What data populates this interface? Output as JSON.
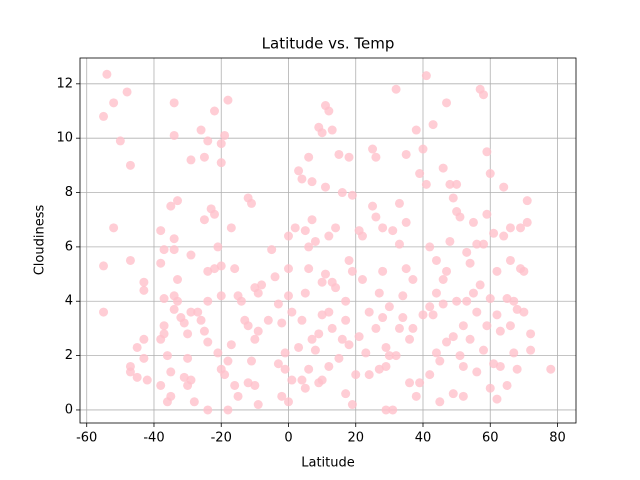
{
  "chart_data": {
    "type": "scatter",
    "title": "Latitude vs. Temp",
    "x_label": "Latitude",
    "y_label": "Cloudiness",
    "color": "#ffc0cb",
    "grid": true,
    "xlim": [
      -62,
      85.5
    ],
    "ylim": [
      -0.48,
      12.95
    ],
    "xticks": [
      -60,
      -40,
      -20,
      0,
      20,
      40,
      60,
      80
    ],
    "yticks": [
      0,
      2,
      4,
      6,
      8,
      10,
      12
    ],
    "x": [
      -54,
      -55,
      -52,
      -48,
      -50,
      -47,
      -52,
      -55,
      -55,
      -47,
      -43,
      -43,
      -45,
      -43,
      -47,
      -47,
      -45,
      -43,
      -42,
      -38,
      -38,
      -38,
      -37,
      -37,
      -37,
      -38,
      -37,
      -36,
      -35,
      -35,
      -36,
      -34,
      -34,
      -35,
      -33,
      -34,
      -34,
      -33,
      -34,
      -33,
      -32,
      -34,
      -31,
      -30,
      -30,
      -31,
      -30,
      -29,
      -28,
      -29,
      -26,
      -24,
      -25,
      -29,
      -29,
      -27,
      -26,
      -25,
      -24,
      -24,
      -24,
      -22,
      -23,
      -25,
      -24,
      -22,
      -20,
      -18,
      -19,
      -20,
      -21,
      -20,
      -20,
      -22,
      -21,
      -20,
      -19,
      -18,
      -17,
      -16,
      -18,
      -15,
      -17,
      -16,
      -15,
      -14,
      -13,
      -12,
      -11,
      -12,
      -10,
      -9,
      -8,
      -9,
      -10,
      -12,
      -11,
      -10,
      -9,
      -6,
      -5,
      -4,
      -3,
      -2,
      -3,
      -2,
      -1,
      -1,
      0,
      0,
      0,
      1,
      1,
      0,
      2,
      3,
      4,
      6,
      5,
      6,
      7,
      7,
      8,
      9,
      10,
      11,
      12,
      11,
      12,
      13,
      14,
      15,
      16,
      14,
      13,
      12,
      10,
      9,
      8,
      7,
      6,
      5,
      4,
      3,
      4,
      5,
      6,
      10,
      11,
      9,
      10,
      12,
      13,
      15,
      16,
      17,
      18,
      19,
      17,
      18,
      19,
      18,
      19,
      20,
      17,
      21,
      22,
      23,
      24,
      25,
      25,
      26,
      26,
      27,
      28,
      28,
      28,
      29,
      29,
      29,
      30,
      31,
      31,
      32,
      33,
      33,
      34,
      34,
      35,
      35,
      36,
      36,
      37,
      38,
      38,
      39,
      40,
      41,
      41,
      42,
      43,
      43,
      42,
      44,
      44,
      45,
      46,
      47,
      48,
      49,
      48,
      47,
      46,
      45,
      49,
      49,
      50,
      50,
      50,
      51,
      51,
      52,
      52,
      53,
      54,
      54,
      55,
      55,
      56,
      56,
      57,
      58,
      58,
      59,
      59,
      60,
      60,
      59,
      58,
      60,
      61,
      62,
      61,
      62,
      63,
      64,
      64,
      65,
      65,
      66,
      66,
      67,
      68,
      69,
      69,
      70,
      70,
      71,
      71,
      72,
      72,
      78,
      66,
      67,
      68,
      63,
      62,
      57,
      56,
      53,
      52,
      47,
      46,
      44,
      42,
      40,
      39,
      37,
      35,
      33,
      32,
      30,
      27,
      26,
      24,
      22,
      21
    ],
    "values": [
      12.35,
      10.8,
      11.3,
      11.7,
      9.9,
      9.0,
      6.7,
      5.3,
      3.6,
      5.5,
      4.7,
      4.4,
      2.3,
      2.6,
      1.6,
      1.4,
      1.2,
      1.9,
      1.1,
      0.9,
      6.6,
      5.4,
      5.9,
      4.1,
      3.1,
      2.6,
      2.8,
      2.0,
      1.4,
      0.5,
      0.3,
      11.3,
      10.1,
      7.5,
      7.7,
      6.3,
      5.9,
      4.8,
      4.2,
      4.0,
      3.4,
      3.7,
      3.2,
      2.8,
      1.9,
      1.2,
      0.9,
      1.1,
      0.3,
      9.2,
      10.3,
      9.9,
      9.3,
      5.7,
      3.6,
      3.6,
      3.3,
      2.9,
      2.5,
      4.0,
      5.1,
      7.2,
      7.4,
      7.0,
      0.0,
      11.0,
      9.8,
      11.4,
      10.1,
      9.1,
      6.0,
      5.3,
      4.2,
      5.2,
      2.1,
      1.5,
      1.3,
      1.8,
      2.4,
      0.9,
      0.0,
      0.5,
      6.7,
      5.2,
      4.2,
      4.0,
      3.3,
      7.8,
      7.6,
      3.1,
      2.6,
      2.9,
      4.6,
      4.3,
      4.5,
      1.0,
      1.8,
      0.9,
      0.2,
      3.3,
      5.9,
      4.9,
      3.9,
      3.2,
      1.7,
      0.5,
      1.5,
      2.1,
      6.4,
      5.2,
      4.2,
      3.6,
      1.1,
      0.3,
      6.7,
      8.8,
      8.5,
      9.3,
      6.6,
      6.0,
      7.0,
      8.4,
      6.2,
      10.4,
      10.2,
      11.2,
      11.0,
      8.2,
      6.4,
      10.3,
      4.5,
      9.4,
      8.0,
      6.7,
      4.7,
      3.6,
      3.5,
      2.8,
      2.2,
      2.6,
      1.5,
      0.8,
      1.1,
      2.3,
      3.3,
      4.3,
      5.2,
      4.7,
      5.0,
      1.0,
      1.1,
      1.6,
      3.0,
      1.9,
      2.6,
      3.3,
      5.5,
      5.1,
      4.0,
      9.3,
      7.9,
      2.4,
      0.2,
      1.3,
      0.6,
      6.6,
      6.4,
      2.1,
      1.3,
      7.5,
      9.6,
      9.3,
      7.1,
      4.3,
      3.4,
      5.1,
      6.7,
      2.3,
      1.6,
      0.0,
      3.8,
      6.6,
      0.0,
      11.8,
      7.6,
      6.1,
      4.2,
      3.4,
      9.4,
      6.9,
      2.6,
      1.0,
      3.0,
      0.5,
      10.3,
      8.7,
      9.6,
      12.3,
      8.3,
      6.0,
      10.5,
      3.5,
      1.3,
      4.3,
      2.1,
      0.3,
      8.9,
      11.3,
      8.3,
      7.8,
      6.2,
      5.1,
      3.9,
      1.8,
      2.7,
      0.6,
      8.3,
      7.3,
      4.0,
      7.1,
      2.0,
      0.5,
      3.1,
      5.8,
      5.4,
      2.6,
      6.9,
      4.3,
      1.4,
      3.6,
      11.8,
      11.6,
      6.1,
      9.5,
      7.2,
      8.7,
      4.1,
      3.1,
      2.2,
      0.8,
      6.5,
      5.1,
      1.7,
      0.4,
      2.9,
      8.2,
      6.4,
      4.1,
      0.9,
      3.1,
      6.7,
      2.1,
      1.5,
      6.7,
      5.2,
      5.1,
      3.6,
      7.7,
      6.9,
      2.2,
      2.8,
      1.5,
      5.5,
      4.0,
      3.7,
      1.6,
      3.5,
      4.6,
      6.1,
      4.0,
      1.6,
      2.5,
      4.8,
      5.5,
      3.8,
      3.5,
      1.0,
      4.8,
      5.2,
      3.0,
      2.0,
      2.0,
      1.5,
      3.0,
      3.6,
      4.8,
      2.7
    ]
  }
}
